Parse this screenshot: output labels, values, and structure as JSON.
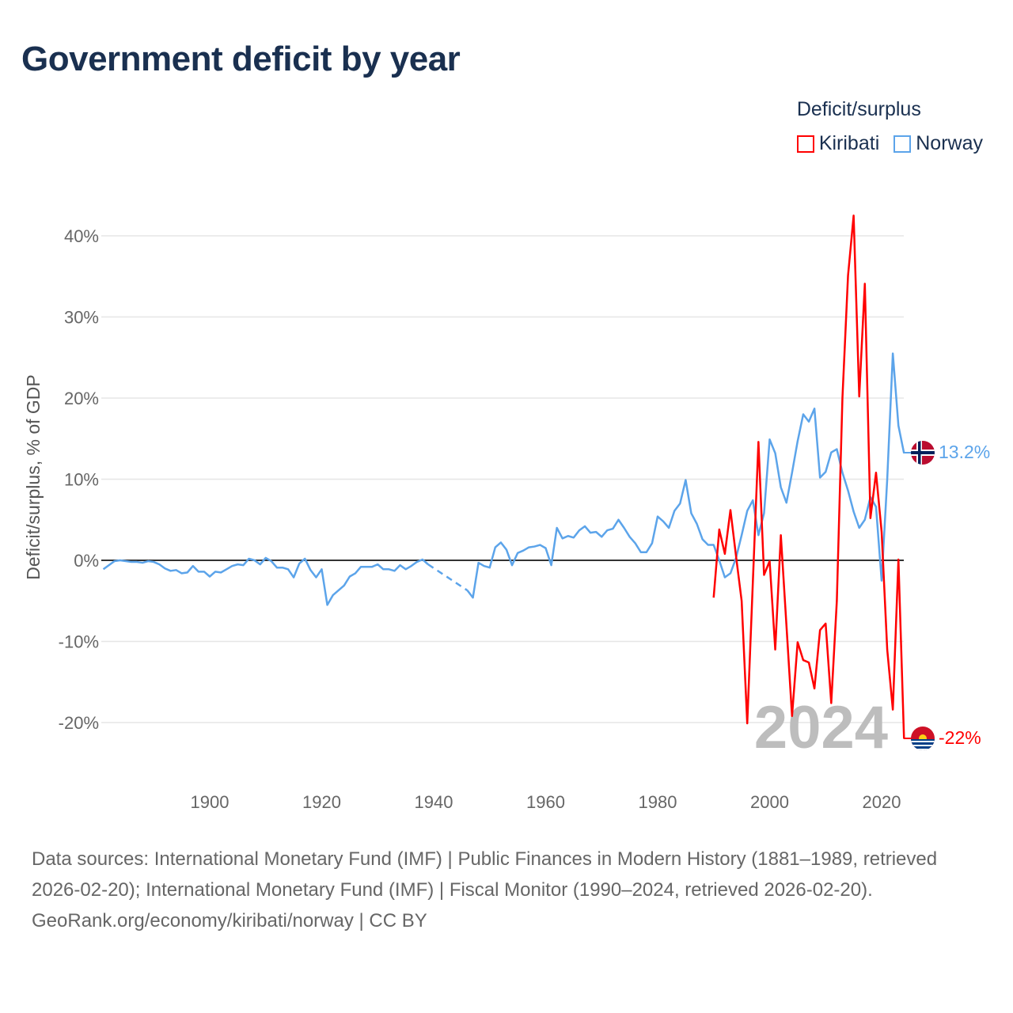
{
  "title": "Government deficit by year",
  "legend": {
    "title": "Deficit/surplus",
    "items": [
      {
        "label": "Kiribati",
        "color": "#ff0000"
      },
      {
        "label": "Norway",
        "color": "#5ca4ea"
      }
    ]
  },
  "year_watermark": "2024",
  "end_labels": {
    "norway": "13.2%",
    "kiribati": "-22%"
  },
  "footer": {
    "sources": "Data sources: International Monetary Fund (IMF) | Public Finances in Modern History (1881–1989, retrieved 2026-02-20); International Monetary Fund (IMF) | Fiscal Monitor (1990–2024, retrieved 2026-02-20).",
    "link": "GeoRank.org/economy/kiribati/norway",
    "license": " | CC BY"
  },
  "chart_data": {
    "type": "line",
    "title": "Government deficit by year",
    "xlabel": "",
    "ylabel": "Deficit/surplus, % of GDP",
    "xlim": [
      1881,
      2024
    ],
    "ylim": [
      -26,
      45
    ],
    "xticks": [
      1900,
      1920,
      1940,
      1960,
      1980,
      2000,
      2020
    ],
    "xtick_labels": [
      "1900",
      "1920",
      "1940",
      "1960",
      "1980",
      "2000",
      "2020"
    ],
    "yticks": [
      -20,
      -10,
      0,
      10,
      20,
      30,
      40
    ],
    "ytick_labels": [
      "-20%",
      "-10%",
      "0%",
      "10%",
      "20%",
      "30%",
      "40%"
    ],
    "grid": true,
    "legend_position": "top-right",
    "series": [
      {
        "name": "Norway",
        "color": "#5ca4ea",
        "x": [
          1881,
          1882,
          1883,
          1884,
          1885,
          1886,
          1887,
          1888,
          1889,
          1890,
          1891,
          1892,
          1893,
          1894,
          1895,
          1896,
          1897,
          1898,
          1899,
          1900,
          1901,
          1902,
          1903,
          1904,
          1905,
          1906,
          1907,
          1908,
          1909,
          1910,
          1911,
          1912,
          1913,
          1914,
          1915,
          1916,
          1917,
          1918,
          1919,
          1920,
          1921,
          1922,
          1923,
          1924,
          1925,
          1926,
          1927,
          1928,
          1929,
          1930,
          1931,
          1932,
          1933,
          1934,
          1935,
          1936,
          1937,
          1938,
          1939,
          1946,
          1947,
          1948,
          1949,
          1950,
          1951,
          1952,
          1953,
          1954,
          1955,
          1956,
          1957,
          1958,
          1959,
          1960,
          1961,
          1962,
          1963,
          1964,
          1965,
          1966,
          1967,
          1968,
          1969,
          1970,
          1971,
          1972,
          1973,
          1974,
          1975,
          1976,
          1977,
          1978,
          1979,
          1980,
          1981,
          1982,
          1983,
          1984,
          1985,
          1986,
          1987,
          1988,
          1989,
          1990,
          1991,
          1992,
          1993,
          1994,
          1995,
          1996,
          1997,
          1998,
          1999,
          2000,
          2001,
          2002,
          2003,
          2004,
          2005,
          2006,
          2007,
          2008,
          2009,
          2010,
          2011,
          2012,
          2013,
          2014,
          2015,
          2016,
          2017,
          2018,
          2019,
          2020,
          2021,
          2022,
          2023,
          2024
        ],
        "y": [
          -1.1,
          -0.6,
          -0.1,
          0,
          -0.1,
          -0.2,
          -0.2,
          -0.3,
          -0.1,
          -0.2,
          -0.5,
          -1.0,
          -1.3,
          -1.2,
          -1.6,
          -1.5,
          -0.7,
          -1.4,
          -1.4,
          -2.0,
          -1.4,
          -1.5,
          -1.1,
          -0.7,
          -0.5,
          -0.6,
          0.2,
          0,
          -0.5,
          0.3,
          -0.1,
          -0.9,
          -0.9,
          -1.1,
          -2.1,
          -0.4,
          0.2,
          -1.2,
          -2.1,
          -1.1,
          -5.5,
          -4.3,
          -3.7,
          -3.1,
          -2.0,
          -1.6,
          -0.8,
          -0.8,
          -0.8,
          -0.5,
          -1.1,
          -1.1,
          -1.3,
          -0.6,
          -1.1,
          -0.7,
          -0.2,
          0.1,
          -0.5,
          -3.7,
          -4.6,
          -0.3,
          -0.7,
          -0.9,
          1.6,
          2.2,
          1.3,
          -0.6,
          0.9,
          1.2,
          1.6,
          1.7,
          1.9,
          1.5,
          -0.6,
          4.0,
          2.7,
          3.0,
          2.8,
          3.7,
          4.2,
          3.4,
          3.5,
          2.9,
          3.7,
          3.9,
          5.0,
          4.0,
          2.9,
          2.1,
          1.0,
          1.0,
          2.1,
          5.4,
          4.8,
          4.0,
          6.1,
          7.0,
          9.9,
          5.8,
          4.5,
          2.6,
          1.9,
          1.9,
          0,
          -2.1,
          -1.6,
          0.3,
          3.1,
          6.1,
          7.4,
          3.1,
          5.8,
          14.9,
          13.2,
          9.0,
          7.1,
          10.8,
          14.7,
          18.0,
          17.1,
          18.7,
          10.2,
          10.9,
          13.3,
          13.7,
          10.8,
          8.6,
          6.0,
          4.0,
          5.0,
          7.8,
          6.6,
          -2.5,
          10.0,
          25.5,
          16.6,
          13.2
        ]
      },
      {
        "name": "Kiribati",
        "color": "#ff0000",
        "x": [
          1990,
          1991,
          1992,
          1993,
          1994,
          1995,
          1996,
          1997,
          1998,
          1999,
          2000,
          2001,
          2002,
          2003,
          2004,
          2005,
          2006,
          2007,
          2008,
          2009,
          2010,
          2011,
          2012,
          2013,
          2014,
          2015,
          2016,
          2017,
          2018,
          2019,
          2020,
          2021,
          2022,
          2023,
          2024
        ],
        "y": [
          -4.6,
          3.8,
          0.8,
          6.2,
          0.5,
          -5.0,
          -20.1,
          -2.7,
          14.6,
          -1.8,
          -0.1,
          -11.0,
          3.1,
          -8.0,
          -19.2,
          -10.1,
          -12.3,
          -12.6,
          -15.8,
          -8.6,
          -7.8,
          -17.6,
          -5.0,
          20.0,
          35.1,
          42.5,
          20.2,
          34.1,
          5.2,
          10.8,
          3.5,
          -11.0,
          -18.4,
          0.1,
          -22.0
        ]
      }
    ]
  }
}
